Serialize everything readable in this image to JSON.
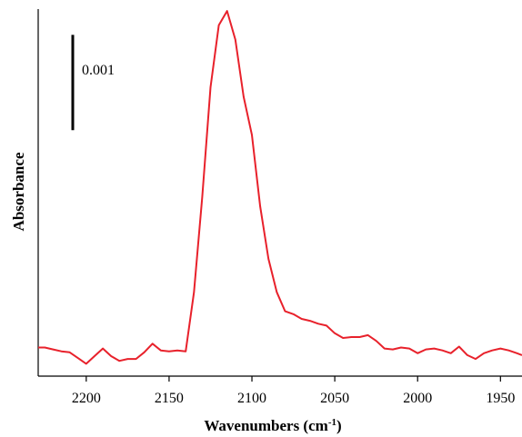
{
  "chart_data": {
    "type": "line",
    "title": "",
    "xlabel": "Wavenumbers (cm",
    "xlabel_sup": "-1",
    "xlabel_suffix": ")",
    "ylabel": "Absorbance",
    "xlim": [
      2229,
      1937
    ],
    "x_reversed": true,
    "ylim": [
      -0.00013,
      0.00372
    ],
    "x_ticks": [
      2200,
      2150,
      2100,
      2050,
      2000,
      1950
    ],
    "y_ticks_shown": false,
    "grid": false,
    "scale_bar": {
      "label": "0.001",
      "value": 0.001
    },
    "series": [
      {
        "color": "#e8212b",
        "x": [
          2229,
          2225,
          2220,
          2215,
          2210,
          2205,
          2200,
          2195,
          2190,
          2185,
          2180,
          2175,
          2170,
          2165,
          2160,
          2155,
          2150,
          2145,
          2140,
          2135,
          2130,
          2125,
          2120,
          2115,
          2110,
          2105,
          2100,
          2095,
          2090,
          2085,
          2080,
          2075,
          2070,
          2065,
          2060,
          2055,
          2050,
          2045,
          2040,
          2035,
          2030,
          2025,
          2020,
          2015,
          2010,
          2005,
          2000,
          1995,
          1990,
          1985,
          1980,
          1975,
          1970,
          1965,
          1960,
          1955,
          1950,
          1945,
          1940,
          1937
        ],
        "y": [
          0.00017,
          0.00017,
          0.00015,
          0.00013,
          0.00012,
          6e-05,
          0.0,
          8e-05,
          0.00016,
          8e-05,
          3e-05,
          5e-05,
          5e-05,
          0.00012,
          0.00021,
          0.00014,
          0.00013,
          0.00014,
          0.00013,
          0.00075,
          0.00175,
          0.0029,
          0.00355,
          0.0037,
          0.0034,
          0.0028,
          0.0024,
          0.00165,
          0.0011,
          0.00075,
          0.00055,
          0.00052,
          0.00047,
          0.00045,
          0.00042,
          0.0004,
          0.00032,
          0.00027,
          0.00028,
          0.00028,
          0.0003,
          0.00024,
          0.00016,
          0.00015,
          0.00017,
          0.00016,
          0.00011,
          0.00015,
          0.00016,
          0.00014,
          0.00011,
          0.00018,
          9e-05,
          5e-05,
          0.00011,
          0.00014,
          0.00016,
          0.00014,
          0.00011,
          9e-05
        ]
      }
    ]
  }
}
